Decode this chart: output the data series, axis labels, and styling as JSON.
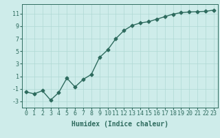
{
  "x": [
    0,
    1,
    2,
    3,
    4,
    5,
    6,
    7,
    8,
    9,
    10,
    11,
    12,
    13,
    14,
    15,
    16,
    17,
    18,
    19,
    20,
    21,
    22,
    23
  ],
  "y": [
    -1.5,
    -1.8,
    -1.3,
    -2.8,
    -1.6,
    0.7,
    -0.7,
    0.5,
    1.3,
    4.0,
    5.2,
    7.0,
    8.3,
    9.1,
    9.5,
    9.7,
    10.1,
    10.5,
    10.9,
    11.15,
    11.25,
    11.3,
    11.35,
    11.55
  ],
  "line_color": "#2e6b5e",
  "marker": "D",
  "marker_size": 2.5,
  "bg_color": "#ceecea",
  "grid_color": "#afd8d4",
  "xlabel": "Humidex (Indice chaleur)",
  "xlim": [
    -0.5,
    23.5
  ],
  "ylim": [
    -4,
    12.5
  ],
  "yticks": [
    -3,
    -1,
    1,
    3,
    5,
    7,
    9,
    11
  ],
  "xticks": [
    0,
    1,
    2,
    3,
    4,
    5,
    6,
    7,
    8,
    9,
    10,
    11,
    12,
    13,
    14,
    15,
    16,
    17,
    18,
    19,
    20,
    21,
    22,
    23
  ],
  "xlabel_fontsize": 7,
  "tick_fontsize": 6,
  "line_width": 1.0
}
